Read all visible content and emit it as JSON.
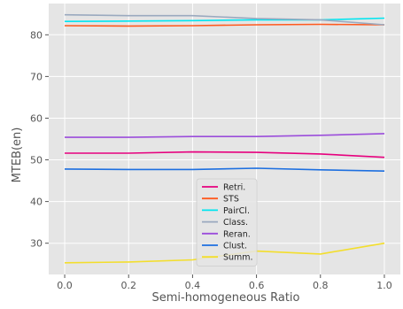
{
  "chart_data": {
    "type": "line",
    "xlabel": "Semi-homogeneous Ratio",
    "ylabel": "MTEB(en)",
    "x": [
      0.0,
      0.2,
      0.4,
      0.6,
      0.8,
      1.0
    ],
    "xlim": [
      -0.05,
      1.05
    ],
    "ylim": [
      22.5,
      87.5
    ],
    "xticks": [
      "0.0",
      "0.2",
      "0.4",
      "0.6",
      "0.8",
      "1.0"
    ],
    "yticks": [
      "30",
      "40",
      "50",
      "60",
      "70",
      "80"
    ],
    "grid": true,
    "background": "#e5e5e5",
    "legend_position": "lower-center",
    "series": [
      {
        "name": "Retri.",
        "color": "#e6007e",
        "values": [
          51.6,
          51.6,
          51.9,
          51.8,
          51.4,
          50.6
        ]
      },
      {
        "name": "STS",
        "color": "#ff5a1f",
        "values": [
          82.2,
          82.1,
          82.2,
          82.4,
          82.5,
          82.4
        ]
      },
      {
        "name": "PairCl.",
        "color": "#00e5f0",
        "values": [
          83.2,
          83.3,
          83.4,
          83.6,
          83.6,
          84.0
        ]
      },
      {
        "name": "Class.",
        "color": "#9aa9bf",
        "values": [
          84.8,
          84.6,
          84.6,
          83.9,
          83.6,
          82.4
        ]
      },
      {
        "name": "Reran.",
        "color": "#9b4ddb",
        "values": [
          55.4,
          55.4,
          55.6,
          55.6,
          55.9,
          56.3
        ]
      },
      {
        "name": "Clust.",
        "color": "#1d6fe0",
        "values": [
          47.8,
          47.7,
          47.7,
          48.0,
          47.6,
          47.3
        ]
      },
      {
        "name": "Summ.",
        "color": "#f3de2c",
        "values": [
          25.3,
          25.5,
          26.0,
          28.1,
          27.4,
          30.0
        ]
      }
    ]
  }
}
